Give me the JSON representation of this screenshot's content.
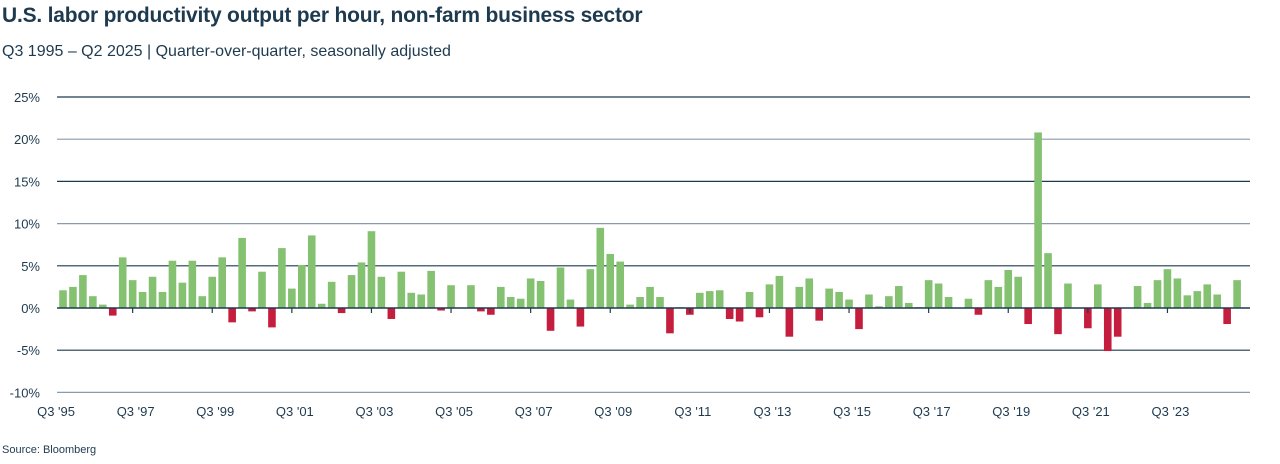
{
  "chart_data": {
    "type": "bar",
    "title": "U.S. labor productivity output per hour, non-farm business sector",
    "subtitle": "Q3 1995 – Q2 2025 | Quarter-over-quarter, seasonally adjusted",
    "xlabel": "",
    "ylabel": "",
    "ylim": [
      -10,
      25
    ],
    "yticks": [
      -10,
      -5,
      0,
      5,
      10,
      15,
      20,
      25
    ],
    "ytick_labels": [
      "-10%",
      "-5%",
      "0%",
      "5%",
      "10%",
      "15%",
      "20%",
      "25%"
    ],
    "xtick_labels": [
      "Q3 '95",
      "Q3 '97",
      "Q3 '99",
      "Q3 '01",
      "Q3 '03",
      "Q3 '05",
      "Q3 '07",
      "Q3 '09",
      "Q3 '11",
      "Q3 '13",
      "Q3 '15",
      "Q3 '17",
      "Q3 '19",
      "Q3 '21",
      "Q3 '23"
    ],
    "grid": true,
    "colors": {
      "positive": "#84c171",
      "negative": "#c41d3d",
      "grid_major": "#1e3a4f",
      "grid_minor": "#8a9cab"
    },
    "categories": [
      "Q4 1995",
      "Q1 1996",
      "Q2 1996",
      "Q3 1996",
      "Q4 1996",
      "Q1 1997",
      "Q2 1997",
      "Q3 1997",
      "Q4 1997",
      "Q1 1998",
      "Q2 1998",
      "Q3 1998",
      "Q4 1998",
      "Q1 1999",
      "Q2 1999",
      "Q3 1999",
      "Q4 1999",
      "Q1 2000",
      "Q2 2000",
      "Q3 2000",
      "Q4 2000",
      "Q1 2001",
      "Q2 2001",
      "Q3 2001",
      "Q4 2001",
      "Q1 2002",
      "Q2 2002",
      "Q3 2002",
      "Q4 2002",
      "Q1 2003",
      "Q2 2003",
      "Q3 2003",
      "Q4 2003",
      "Q1 2004",
      "Q2 2004",
      "Q3 2004",
      "Q4 2004",
      "Q1 2005",
      "Q2 2005",
      "Q3 2005",
      "Q4 2005",
      "Q1 2006",
      "Q2 2006",
      "Q3 2006",
      "Q4 2006",
      "Q1 2007",
      "Q2 2007",
      "Q3 2007",
      "Q4 2007",
      "Q1 2008",
      "Q2 2008",
      "Q3 2008",
      "Q4 2008",
      "Q1 2009",
      "Q2 2009",
      "Q3 2009",
      "Q4 2009",
      "Q1 2010",
      "Q2 2010",
      "Q3 2010",
      "Q4 2010",
      "Q1 2011",
      "Q2 2011",
      "Q3 2011",
      "Q4 2011",
      "Q1 2012",
      "Q2 2012",
      "Q3 2012",
      "Q4 2012",
      "Q1 2013",
      "Q2 2013",
      "Q3 2013",
      "Q4 2013",
      "Q1 2014",
      "Q2 2014",
      "Q3 2014",
      "Q4 2014",
      "Q1 2015",
      "Q2 2015",
      "Q3 2015",
      "Q4 2015",
      "Q1 2016",
      "Q2 2016",
      "Q3 2016",
      "Q4 2016",
      "Q1 2017",
      "Q2 2017",
      "Q3 2017",
      "Q4 2017",
      "Q1 2018",
      "Q2 2018",
      "Q3 2018",
      "Q4 2018",
      "Q1 2019",
      "Q2 2019",
      "Q3 2019",
      "Q4 2019",
      "Q1 2020",
      "Q2 2020",
      "Q3 2020",
      "Q4 2020",
      "Q1 2021",
      "Q2 2021",
      "Q3 2021",
      "Q4 2021",
      "Q1 2022",
      "Q2 2022",
      "Q3 2022",
      "Q4 2022",
      "Q1 2023",
      "Q2 2023",
      "Q3 2023",
      "Q4 2023",
      "Q1 2024",
      "Q2 2024",
      "Q3 2024",
      "Q4 2024",
      "Q1 2025",
      "Q2 2025"
    ],
    "values": [
      2.1,
      2.5,
      3.9,
      1.4,
      0.4,
      -0.9,
      6.0,
      3.3,
      1.9,
      3.7,
      1.9,
      5.6,
      3.0,
      5.6,
      1.4,
      3.7,
      6.0,
      -1.7,
      8.3,
      -0.4,
      4.3,
      -2.3,
      7.1,
      2.3,
      5.1,
      8.6,
      0.5,
      3.1,
      -0.6,
      3.9,
      5.4,
      9.1,
      3.7,
      -1.3,
      4.3,
      1.8,
      1.6,
      4.4,
      -0.3,
      2.7,
      0.0,
      2.7,
      -0.4,
      -0.8,
      2.5,
      1.3,
      1.1,
      3.5,
      3.2,
      -2.7,
      4.8,
      1.0,
      -2.2,
      4.6,
      9.5,
      6.4,
      5.5,
      0.4,
      1.3,
      2.5,
      1.3,
      -3.0,
      0.1,
      -0.8,
      1.8,
      2.0,
      2.1,
      -1.3,
      -1.6,
      1.9,
      -1.1,
      2.8,
      3.8,
      -3.4,
      2.5,
      3.5,
      -1.5,
      2.3,
      1.9,
      1.0,
      -2.5,
      1.6,
      0.2,
      1.4,
      2.6,
      0.6,
      0.1,
      3.3,
      2.9,
      1.3,
      0.0,
      1.1,
      -0.8,
      3.3,
      2.5,
      4.5,
      3.7,
      -1.9,
      20.8,
      6.5,
      -3.1,
      2.9,
      0.0,
      -2.4,
      2.8,
      -5.1,
      -3.4,
      0.0,
      2.6,
      0.6,
      3.3,
      4.6,
      3.5,
      1.5,
      2.0,
      2.8,
      1.6,
      -1.9,
      3.3
    ]
  },
  "source": "Source: Bloomberg"
}
